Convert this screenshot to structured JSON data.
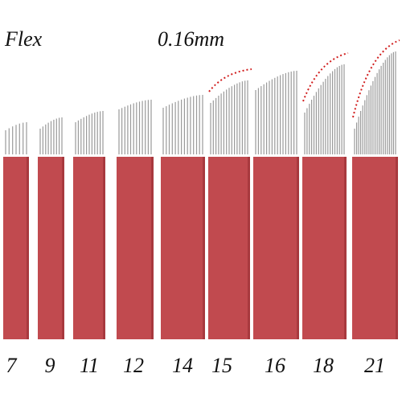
{
  "header": {
    "type_label": "Flex",
    "size_label": "0.16mm"
  },
  "colors": {
    "blade_body": "#c14a4f",
    "blade_shadow": "#a8393e",
    "needle": "#9a9a9a",
    "curve_mark": "#d11f1f",
    "text": "#111111"
  },
  "blades": [
    {
      "label": "7",
      "pins": 7,
      "curve_marked": false
    },
    {
      "label": "9",
      "pins": 9,
      "curve_marked": false
    },
    {
      "label": "11",
      "pins": 11,
      "curve_marked": false
    },
    {
      "label": "12",
      "pins": 12,
      "curve_marked": false
    },
    {
      "label": "14",
      "pins": 14,
      "curve_marked": false
    },
    {
      "label": "15",
      "pins": 15,
      "curve_marked": true
    },
    {
      "label": "16",
      "pins": 16,
      "curve_marked": false
    },
    {
      "label": "18",
      "pins": 18,
      "curve_marked": true
    },
    {
      "label": "21",
      "pins": 21,
      "curve_marked": true
    }
  ]
}
